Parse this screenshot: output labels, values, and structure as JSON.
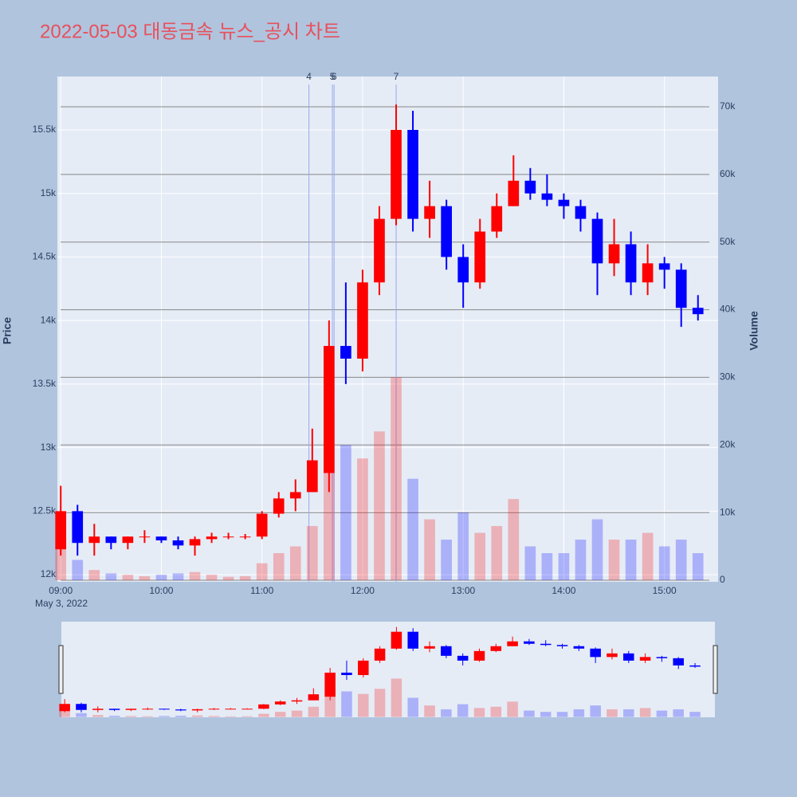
{
  "chart_data": {
    "type": "candlestick",
    "title": "2022-05-03 대동금속 뉴스_공시 차트",
    "ylabel": "Price",
    "y2label": "Volume",
    "x_date_label": "May 3, 2022",
    "increasing_color": "#ff0000",
    "decreasing_color": "#0000ff",
    "grid": true,
    "rangeslider": true,
    "x": [
      "09:00",
      "09:10",
      "09:20",
      "09:30",
      "09:40",
      "09:50",
      "10:00",
      "10:10",
      "10:20",
      "10:30",
      "10:40",
      "10:50",
      "11:00",
      "11:10",
      "11:20",
      "11:30",
      "11:40",
      "11:50",
      "12:00",
      "12:10",
      "12:20",
      "12:30",
      "12:40",
      "12:50",
      "13:00",
      "13:10",
      "13:20",
      "13:30",
      "13:40",
      "13:50",
      "14:00",
      "14:10",
      "14:20",
      "14:30",
      "14:40",
      "14:50",
      "15:00",
      "15:10",
      "15:20"
    ],
    "open": [
      12200,
      12500,
      12250,
      12300,
      12250,
      12300,
      12300,
      12270,
      12230,
      12280,
      12300,
      12300,
      12300,
      12480,
      12600,
      12650,
      12800,
      13800,
      13700,
      14300,
      14800,
      15500,
      14800,
      14900,
      14500,
      14300,
      14700,
      14900,
      15100,
      15000,
      14950,
      14900,
      14800,
      14450,
      14600,
      14300,
      14450,
      14400,
      14100
    ],
    "high": [
      12700,
      12550,
      12400,
      12300,
      12300,
      12350,
      12300,
      12300,
      12300,
      12330,
      12330,
      12320,
      12500,
      12650,
      12750,
      13150,
      14000,
      14300,
      14400,
      14900,
      15700,
      15650,
      15100,
      14950,
      14600,
      14800,
      15000,
      15300,
      15200,
      15150,
      15000,
      14950,
      14850,
      14800,
      14700,
      14600,
      14500,
      14450,
      14200
    ],
    "low": [
      12150,
      12150,
      12150,
      12200,
      12200,
      12250,
      12250,
      12200,
      12150,
      12250,
      12280,
      12280,
      12280,
      12450,
      12500,
      12650,
      12650,
      13500,
      13600,
      14200,
      14750,
      14700,
      14650,
      14400,
      14100,
      14250,
      14650,
      14900,
      14950,
      14900,
      14800,
      14700,
      14200,
      14350,
      14200,
      14200,
      14250,
      13950,
      14000
    ],
    "close": [
      12500,
      12250,
      12300,
      12250,
      12300,
      12300,
      12270,
      12230,
      12280,
      12300,
      12300,
      12300,
      12480,
      12600,
      12650,
      12900,
      13800,
      13700,
      14300,
      14800,
      15500,
      14800,
      14900,
      14500,
      14300,
      14700,
      14900,
      15100,
      15000,
      14950,
      14900,
      14800,
      14450,
      14600,
      14300,
      14450,
      14400,
      14100,
      14050
    ],
    "volume": [
      5000,
      3000,
      1500,
      1000,
      800,
      600,
      800,
      1000,
      1200,
      800,
      500,
      600,
      2500,
      4000,
      5000,
      8000,
      25000,
      20000,
      18000,
      22000,
      30000,
      15000,
      9000,
      6000,
      10000,
      7000,
      8000,
      12000,
      5000,
      4000,
      4000,
      6000,
      9000,
      6000,
      6000,
      7000,
      5000,
      6000,
      4000
    ],
    "annotations": [
      {
        "x": "11:28",
        "label": "4"
      },
      {
        "x": "11:42",
        "label": "5"
      },
      {
        "x": "11:43",
        "label": "6"
      },
      {
        "x": "12:20",
        "label": "7"
      }
    ],
    "xlim": [
      "08:58",
      "15:32"
    ],
    "xticks": [
      "09:00",
      "10:00",
      "11:00",
      "12:00",
      "13:00",
      "14:00",
      "15:00"
    ],
    "ylim": [
      11944,
      15920
    ],
    "yticks": [
      {
        "value": 12000,
        "label": "12k"
      },
      {
        "value": 12500,
        "label": "12.5k"
      },
      {
        "value": 13000,
        "label": "13k"
      },
      {
        "value": 13500,
        "label": "13.5k"
      },
      {
        "value": 14000,
        "label": "14k"
      },
      {
        "value": 14500,
        "label": "14.5k"
      },
      {
        "value": 15000,
        "label": "15k"
      },
      {
        "value": 15500,
        "label": "15.5k"
      }
    ],
    "y2lim": [
      -240,
      74480
    ],
    "y2ticks": [
      0,
      {
        "value": 10000,
        "label": "10k"
      },
      {
        "value": 20000,
        "label": "20k"
      },
      {
        "value": 30000,
        "label": "30k"
      },
      {
        "value": 40000,
        "label": "40k"
      },
      {
        "value": 50000,
        "label": "50k"
      },
      {
        "value": 60000,
        "label": "60k"
      },
      {
        "value": 70000,
        "label": "70k"
      }
    ]
  }
}
